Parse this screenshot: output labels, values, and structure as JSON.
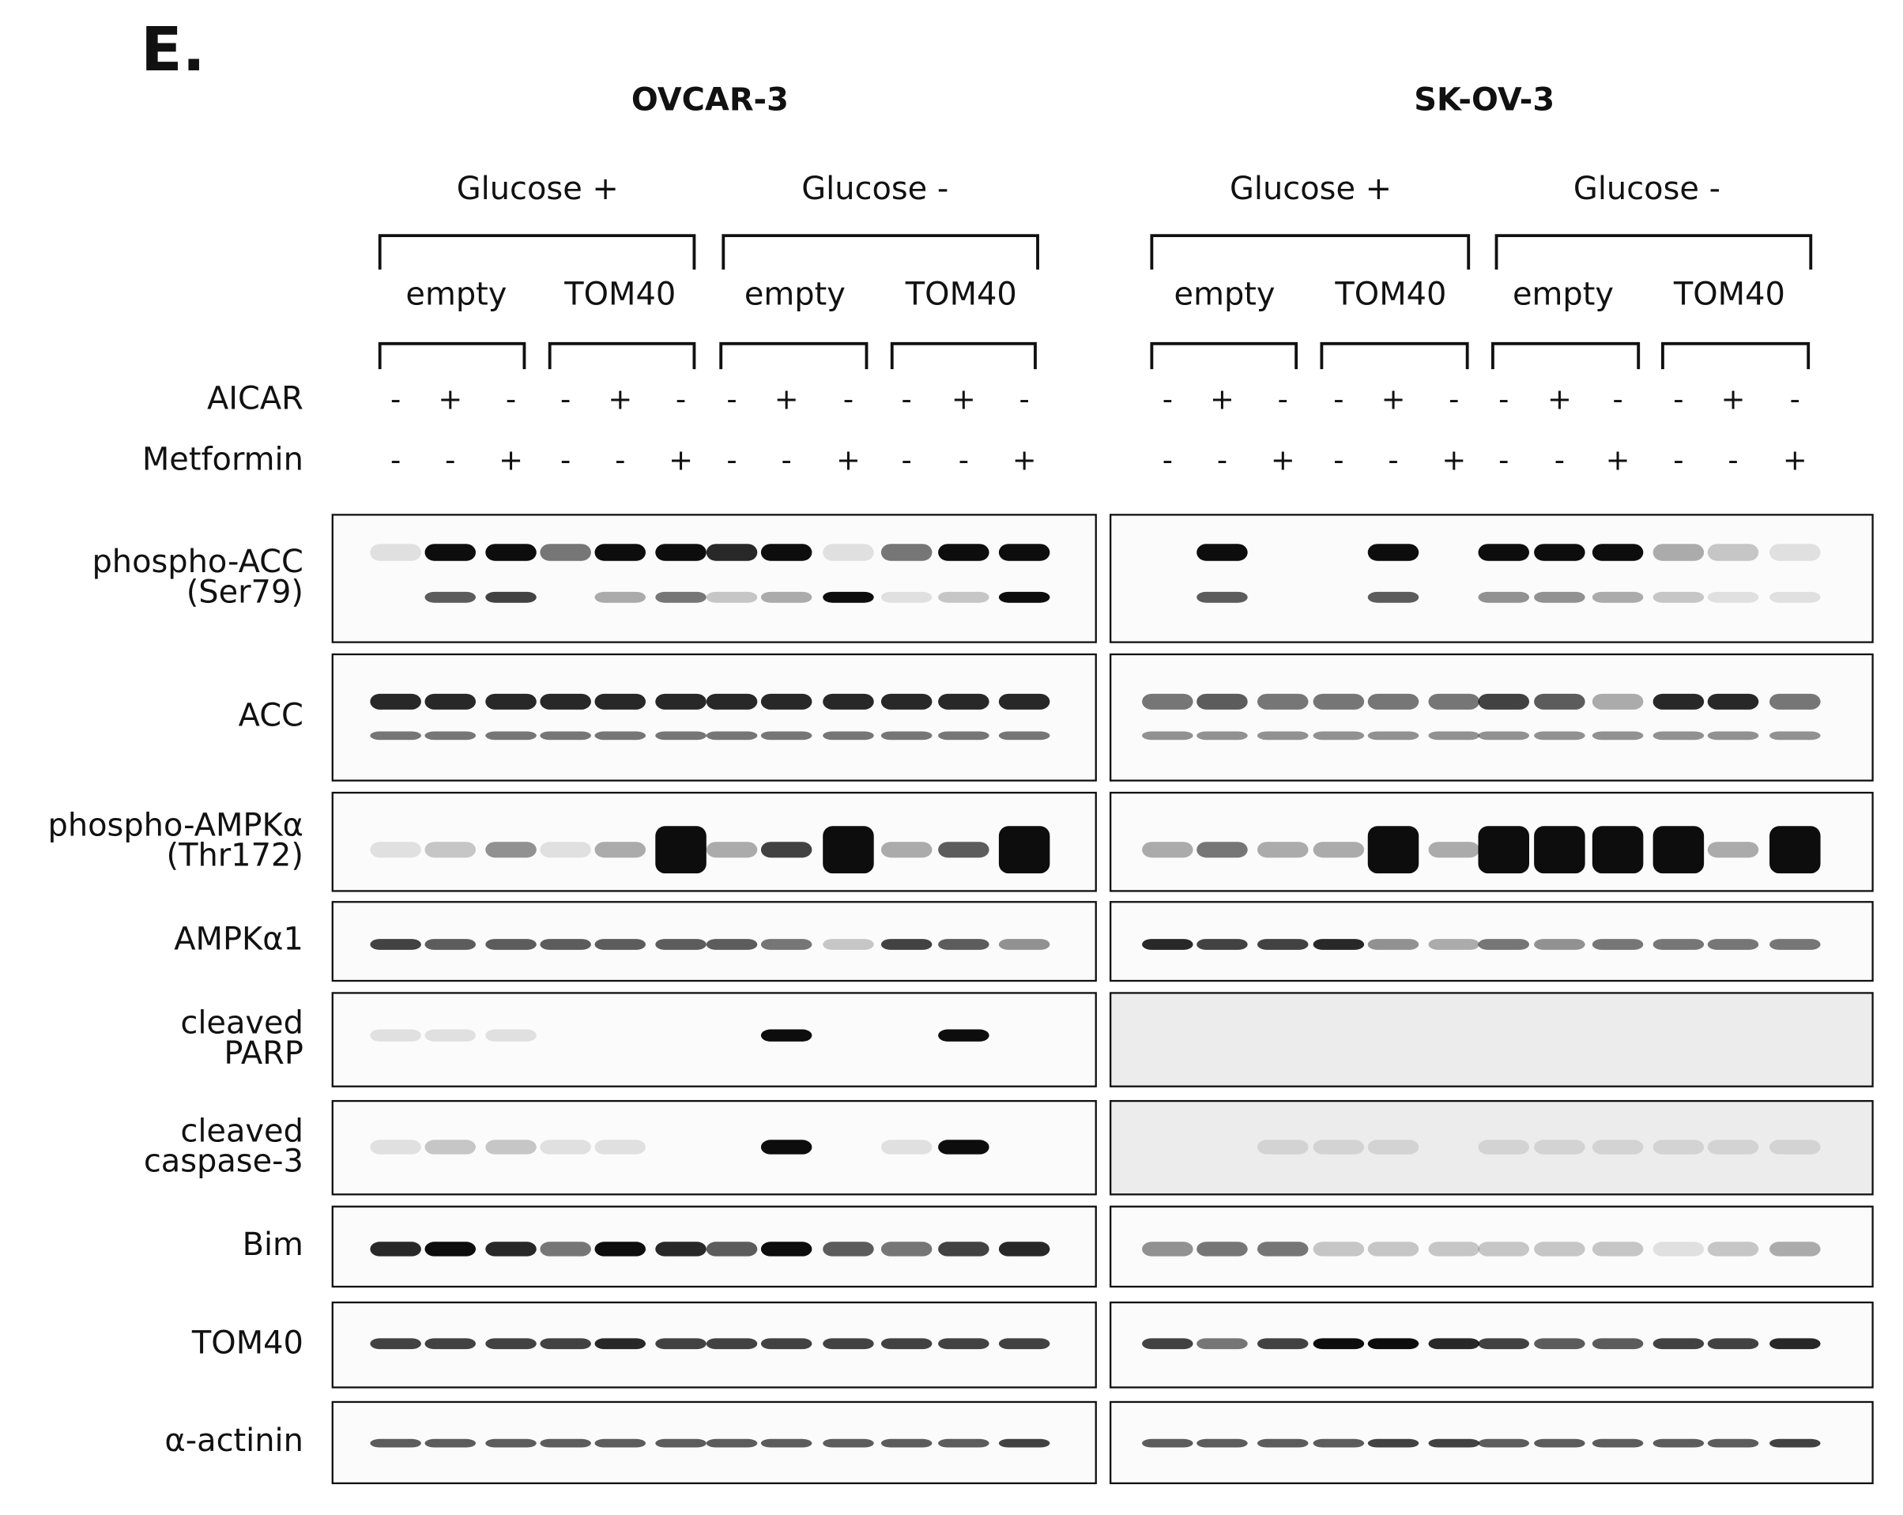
{
  "panel_label": "E.",
  "cell_lines": [
    {
      "name": "OVCAR-3",
      "glucose": [
        {
          "label": "Glucose +",
          "groups": [
            "empty",
            "TOM40"
          ]
        },
        {
          "label": "Glucose -",
          "groups": [
            "empty",
            "TOM40"
          ]
        }
      ]
    },
    {
      "name": "SK-OV-3",
      "glucose": [
        {
          "label": "Glucose +",
          "groups": [
            "empty",
            "TOM40"
          ]
        },
        {
          "label": "Glucose -",
          "groups": [
            "empty",
            "TOM40"
          ]
        }
      ]
    }
  ],
  "treatments": [
    {
      "label": "AICAR",
      "signs": [
        "-",
        "+",
        "-",
        "-",
        "+",
        "-",
        "-",
        "+",
        "-",
        "-",
        "+",
        "-",
        "-",
        "+",
        "-",
        "-",
        "+",
        "-",
        "-",
        "+",
        "-",
        "-",
        "+",
        "-"
      ]
    },
    {
      "label": "Metformin",
      "signs": [
        "-",
        "-",
        "+",
        "-",
        "-",
        "+",
        "-",
        "-",
        "+",
        "-",
        "-",
        "+",
        "-",
        "-",
        "+",
        "-",
        "-",
        "+",
        "-",
        "-",
        "+",
        "-",
        "-",
        "+"
      ]
    }
  ],
  "blots": [
    {
      "lines": [
        "phospho-ACC",
        "(Ser79)"
      ]
    },
    {
      "lines": [
        "ACC"
      ]
    },
    {
      "lines": [
        "phospho-AMPKα",
        "(Thr172)"
      ]
    },
    {
      "lines": [
        "AMPKα1"
      ]
    },
    {
      "lines": [
        "cleaved",
        "PARP"
      ]
    },
    {
      "lines": [
        "cleaved",
        "caspase-3"
      ]
    },
    {
      "lines": [
        "Bim"
      ]
    },
    {
      "lines": [
        "TOM40"
      ]
    },
    {
      "lines": [
        "α-actinin"
      ]
    }
  ]
}
